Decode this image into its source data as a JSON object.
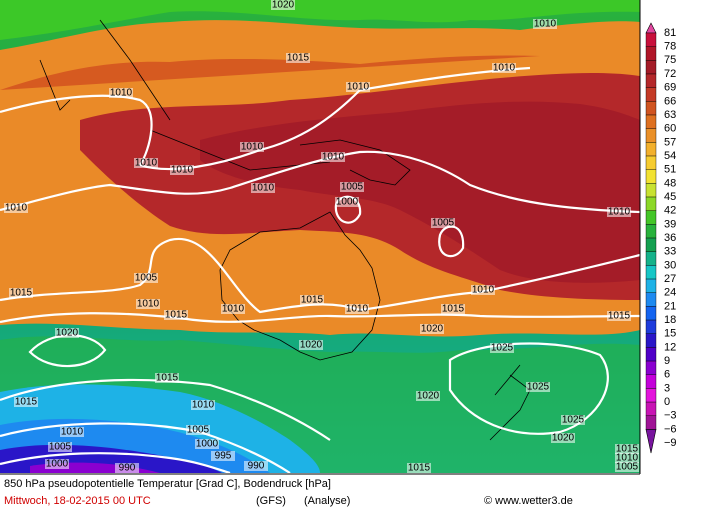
{
  "header": {
    "title": "850 hPa pseudopotentielle Temperatur [Grad C], Bodendruck [hPa]",
    "date": "Mittwoch, 18-02-2015  00 UTC",
    "model": "(GFS)",
    "run": "(Analyse)",
    "credit": "© www.wetter3.de"
  },
  "colorbar": {
    "labels": [
      "81",
      "78",
      "75",
      "72",
      "69",
      "66",
      "63",
      "60",
      "57",
      "54",
      "51",
      "48",
      "45",
      "42",
      "39",
      "36",
      "33",
      "30",
      "27",
      "24",
      "21",
      "18",
      "15",
      "12",
      "9",
      "6",
      "3",
      "0",
      "−3",
      "−6",
      "−9"
    ],
    "colors": [
      "#e2479f",
      "#c8103c",
      "#b01628",
      "#a41c28",
      "#b4282a",
      "#c43a26",
      "#d05420",
      "#de7020",
      "#ea9028",
      "#f2b02c",
      "#f6cc30",
      "#f2e232",
      "#c8e232",
      "#8cd828",
      "#44c628",
      "#28b23c",
      "#14a050",
      "#14b28a",
      "#16c6c6",
      "#1eb2e6",
      "#1e8af0",
      "#1464f0",
      "#1e3cdc",
      "#2a16c8",
      "#5000c8",
      "#8a00d0",
      "#c400da",
      "#e414dc",
      "#c814b4",
      "#a01496",
      "#78149e"
    ]
  },
  "isobars": [
    "1020",
    "1015",
    "1010",
    "1010",
    "1010",
    "1010",
    "1010",
    "1010",
    "1010",
    "1010",
    "1010",
    "1005",
    "1000",
    "1010",
    "1005",
    "1010",
    "1005",
    "1010",
    "1015",
    "1015",
    "1010",
    "1015",
    "1010",
    "1015",
    "1010",
    "1015",
    "1020",
    "1020",
    "1020",
    "1025",
    "1015",
    "1025",
    "1015",
    "1010",
    "1020",
    "1025",
    "1005",
    "1010",
    "1000",
    "1005",
    "995",
    "1000",
    "990",
    "990",
    "1020",
    "1015",
    "1015",
    "1010",
    "1005"
  ]
}
